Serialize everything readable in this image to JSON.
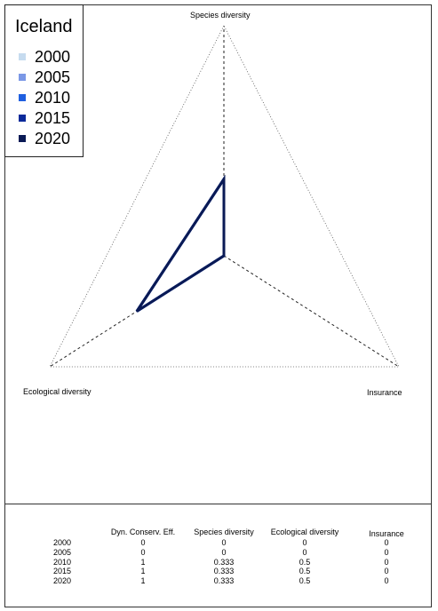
{
  "chart_data": {
    "type": "radar",
    "title": "",
    "legend": {
      "title": "Iceland",
      "placement": "top-left",
      "items": [
        {
          "label": "2000",
          "color": "#c6dbef"
        },
        {
          "label": "2005",
          "color": "#7b98e6"
        },
        {
          "label": "2010",
          "color": "#1f5fe0"
        },
        {
          "label": "2015",
          "color": "#0b2a9a"
        },
        {
          "label": "2020",
          "color": "#0a1a55"
        }
      ]
    },
    "axes": [
      "Species diversity",
      "Ecological diversity",
      "Insurance"
    ],
    "range": [
      0,
      1
    ],
    "series": [
      {
        "name": "2000",
        "values": [
          0,
          0,
          0
        ],
        "color": "#c6dbef"
      },
      {
        "name": "2005",
        "values": [
          0,
          0,
          0
        ],
        "color": "#7b98e6"
      },
      {
        "name": "2010",
        "values": [
          0.333,
          0.5,
          0
        ],
        "color": "#1f5fe0"
      },
      {
        "name": "2015",
        "values": [
          0.333,
          0.5,
          0
        ],
        "color": "#0b2a9a"
      },
      {
        "name": "2020",
        "values": [
          0.333,
          0.5,
          0
        ],
        "color": "#0a1a55"
      }
    ],
    "table": {
      "headers": [
        "Dyn. Conserv. Eff.",
        "Species diversity",
        "Ecological diversity",
        "Insurance"
      ],
      "rows": [
        {
          "year": "2000",
          "cells": [
            "0",
            "0",
            "0",
            "0"
          ]
        },
        {
          "year": "2005",
          "cells": [
            "0",
            "0",
            "0",
            "0"
          ]
        },
        {
          "year": "2010",
          "cells": [
            "1",
            "0.333",
            "0.5",
            "0"
          ]
        },
        {
          "year": "2015",
          "cells": [
            "1",
            "0.333",
            "0.5",
            "0"
          ]
        },
        {
          "year": "2020",
          "cells": [
            "1",
            "0.333",
            "0.5",
            "0"
          ]
        }
      ]
    }
  }
}
